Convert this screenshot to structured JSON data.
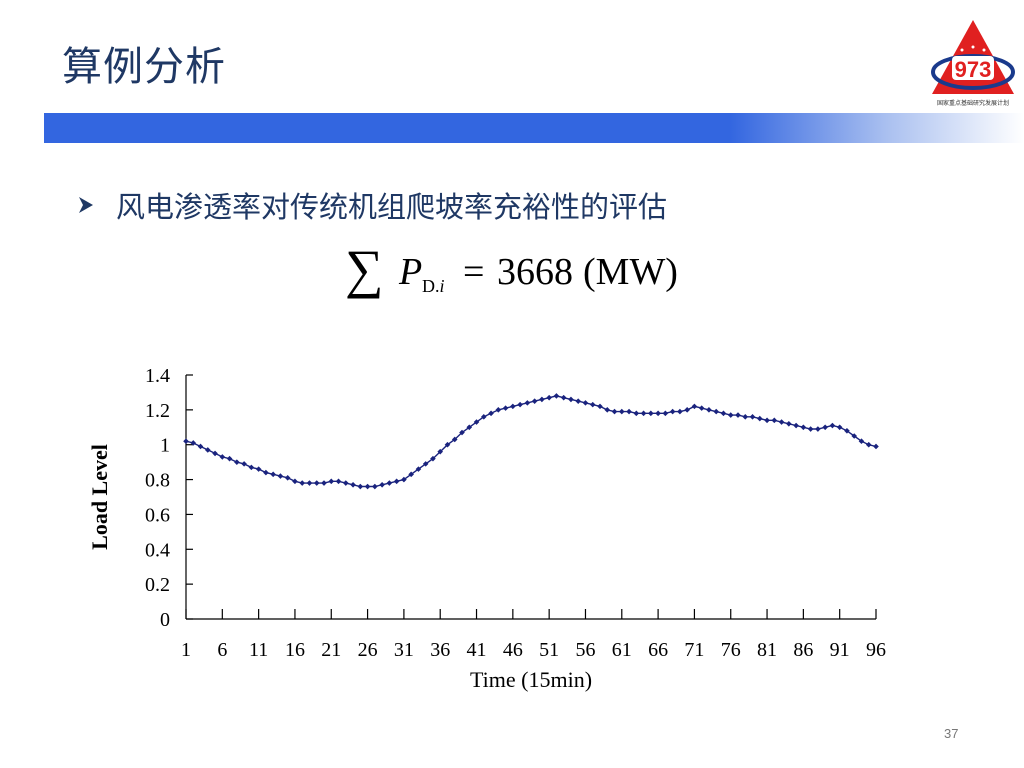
{
  "header": {
    "title": "算例分析",
    "logo_number": "973",
    "logo_caption": "国家重点基础研究发展计划",
    "bar_color": "#3366e0",
    "title_color": "#1f3864",
    "logo_red": "#e02020",
    "logo_blue": "#1a3a8c"
  },
  "bullet": {
    "icon": "arrow-right-icon",
    "text": "风电渗透率对传统机组爬坡率充裕性的评估"
  },
  "formula": {
    "sigma": "∑",
    "symbol": "P",
    "subscript_main": "D.",
    "subscript_index": "i",
    "equals": "=",
    "value": "3668",
    "unit": "(MW)"
  },
  "chart_data": {
    "type": "line",
    "xlabel": "Time (15min)",
    "ylabel": "Load Level",
    "xlim": [
      1,
      96
    ],
    "ylim": [
      0,
      1.4
    ],
    "x_ticks": [
      1,
      6,
      11,
      16,
      21,
      26,
      31,
      36,
      41,
      46,
      51,
      56,
      61,
      66,
      71,
      76,
      81,
      86,
      91,
      96
    ],
    "y_ticks": [
      "0",
      "0.2",
      "0.4",
      "0.6",
      "0.8",
      "1",
      "1.2",
      "1.4"
    ],
    "grid": false,
    "marker": "diamond",
    "line_color": "#1a237e",
    "series": [
      {
        "name": "",
        "values": [
          1.02,
          1.01,
          0.99,
          0.97,
          0.95,
          0.93,
          0.92,
          0.9,
          0.89,
          0.87,
          0.86,
          0.84,
          0.83,
          0.82,
          0.81,
          0.79,
          0.78,
          0.78,
          0.78,
          0.78,
          0.79,
          0.79,
          0.78,
          0.77,
          0.76,
          0.76,
          0.76,
          0.77,
          0.78,
          0.79,
          0.8,
          0.83,
          0.86,
          0.89,
          0.92,
          0.96,
          1.0,
          1.03,
          1.07,
          1.1,
          1.13,
          1.16,
          1.18,
          1.2,
          1.21,
          1.22,
          1.23,
          1.24,
          1.25,
          1.26,
          1.27,
          1.28,
          1.27,
          1.26,
          1.25,
          1.24,
          1.23,
          1.22,
          1.2,
          1.19,
          1.19,
          1.19,
          1.18,
          1.18,
          1.18,
          1.18,
          1.18,
          1.19,
          1.19,
          1.2,
          1.22,
          1.21,
          1.2,
          1.19,
          1.18,
          1.17,
          1.17,
          1.16,
          1.16,
          1.15,
          1.14,
          1.14,
          1.13,
          1.12,
          1.11,
          1.1,
          1.09,
          1.09,
          1.1,
          1.11,
          1.1,
          1.08,
          1.05,
          1.02,
          1.0,
          0.99
        ]
      }
    ]
  },
  "footer": {
    "page_number": "37"
  }
}
